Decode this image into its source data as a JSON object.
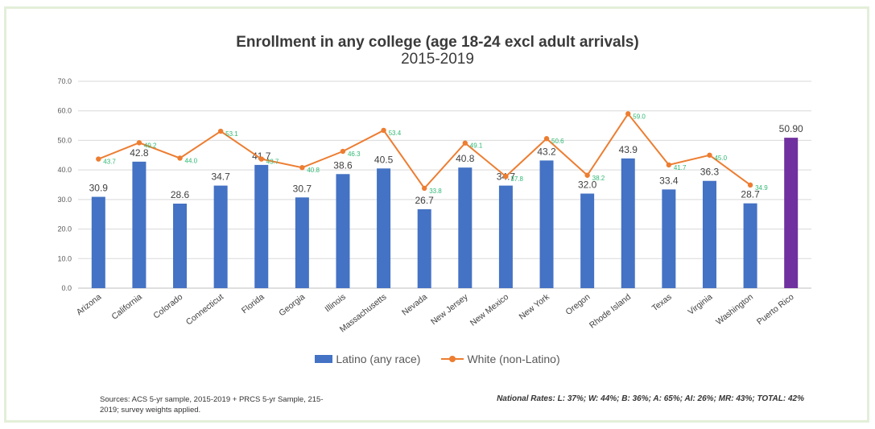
{
  "chart_data": {
    "type": "bar",
    "title": "Enrollment in any college (age 18-24 excl adult arrivals)",
    "subtitle": "2015-2019",
    "categories": [
      "Arizona",
      "California",
      "Colorado",
      "Connecticut",
      "Florida",
      "Georgia",
      "Illinois",
      "Massachusetts",
      "Nevada",
      "New Jersey",
      "New Mexico",
      "New York",
      "Oregon",
      "Rhode Island",
      "Texas",
      "Virginia",
      "Washington",
      "Puerto Rico"
    ],
    "series": [
      {
        "name": "Latino (any race)",
        "kind": "bar",
        "color": "#4472c4",
        "values": [
          30.9,
          42.8,
          28.6,
          34.7,
          41.7,
          30.7,
          38.6,
          40.5,
          26.7,
          40.8,
          34.7,
          43.2,
          32.0,
          43.9,
          33.4,
          36.3,
          28.7,
          null
        ],
        "labels": [
          "30.9",
          "42.8",
          "28.6",
          "34.7",
          "41.7",
          "30.7",
          "38.6",
          "40.5",
          "26.7",
          "40.8",
          "34.7",
          "43.2",
          "32.0",
          "43.9",
          "33.4",
          "36.3",
          "28.7",
          ""
        ]
      },
      {
        "name": "White (non-Latino)",
        "kind": "line",
        "color": "#ed7d31",
        "label_color": "#2eb872",
        "values": [
          43.7,
          49.2,
          44.0,
          53.1,
          43.7,
          40.8,
          46.3,
          53.4,
          33.8,
          49.1,
          37.8,
          50.6,
          38.2,
          59.0,
          41.7,
          45.0,
          34.9,
          null
        ],
        "labels": [
          "43.7",
          "49.2",
          "44.0",
          "53.1",
          "43.7",
          "40.8",
          "46.3",
          "53.4",
          "33.8",
          "49.1",
          "37.8",
          "50.6",
          "38.2",
          "59.0",
          "41.7",
          "45.0",
          "34.9",
          ""
        ]
      }
    ],
    "highlight": {
      "category": "Puerto Rico",
      "value": 50.9,
      "label": "50.90",
      "color": "#7030a0"
    },
    "ylim": [
      0,
      70
    ],
    "yticks": [
      "0.0",
      "10.0",
      "20.0",
      "30.0",
      "40.0",
      "50.0",
      "60.0",
      "70.0"
    ],
    "grid": true,
    "legend_position": "bottom"
  },
  "footer": {
    "sources": "Sources: ACS 5-yr sample, 2015-2019 + PRCS 5-yr Sample, 215-2019; survey weights applied.",
    "national_rates": "National Rates: L: 37%; W: 44%; B: 36%; A: 65%; AI: 26%; MR: 43%; TOTAL: 42%"
  }
}
